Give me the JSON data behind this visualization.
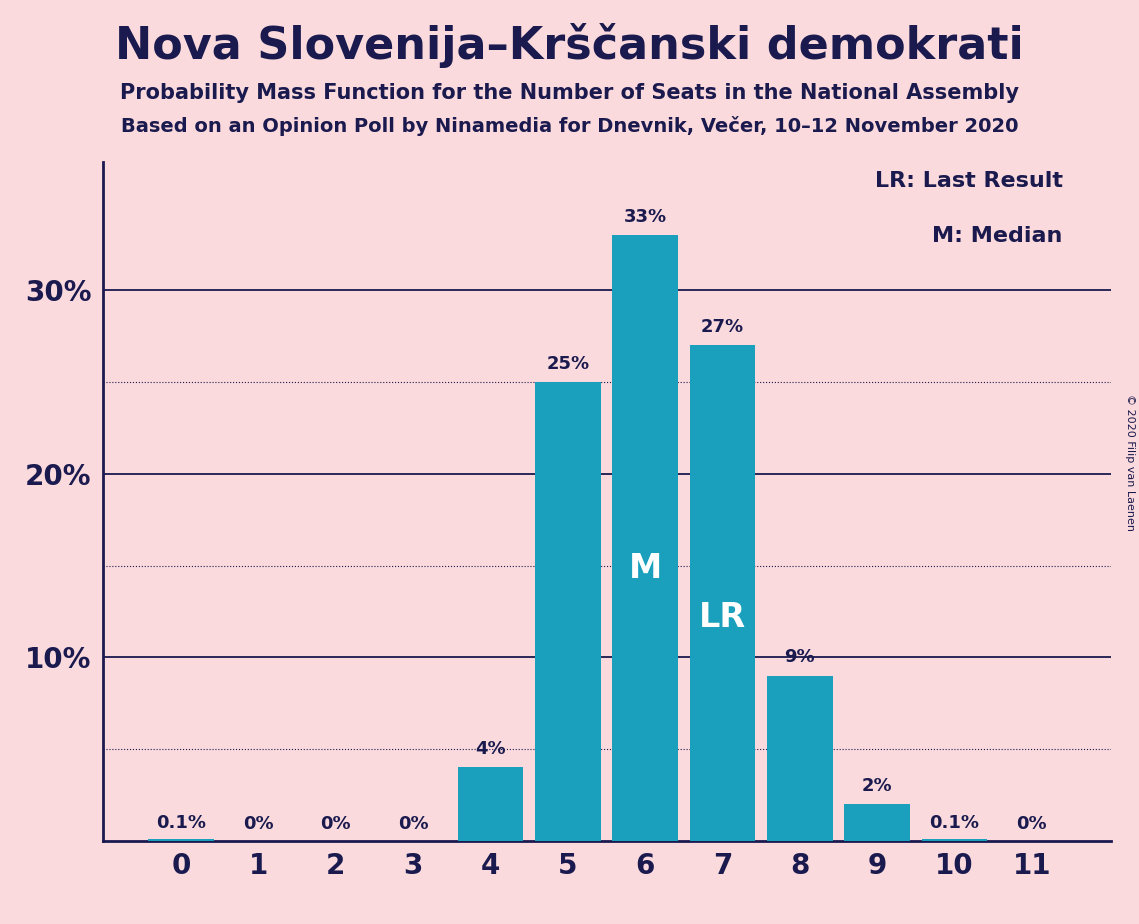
{
  "title": "Nova Slovenija–Krščanski demokrati",
  "subtitle1": "Probability Mass Function for the Number of Seats in the National Assembly",
  "subtitle2": "Based on an Opinion Poll by Ninamedia for Dnevnik, Večer, 10–12 November 2020",
  "copyright": "© 2020 Filip van Laenen",
  "categories": [
    0,
    1,
    2,
    3,
    4,
    5,
    6,
    7,
    8,
    9,
    10,
    11
  ],
  "values": [
    0.1,
    0.0,
    0.0,
    0.0,
    4.0,
    25.0,
    33.0,
    27.0,
    9.0,
    2.0,
    0.1,
    0.0
  ],
  "labels": [
    "0.1%",
    "0%",
    "0%",
    "0%",
    "4%",
    "25%",
    "33%",
    "27%",
    "9%",
    "2%",
    "0.1%",
    "0%"
  ],
  "bar_color": "#1a9fbc",
  "background_color": "#fadadd",
  "text_color": "#1a1a4e",
  "median_seat": 6,
  "last_result_seat": 7,
  "major_gridlines": [
    10,
    20,
    30
  ],
  "dotted_gridlines": [
    5,
    15,
    25
  ],
  "ylim": [
    0,
    37
  ],
  "legend_lr": "LR: Last Result",
  "legend_m": "M: Median"
}
